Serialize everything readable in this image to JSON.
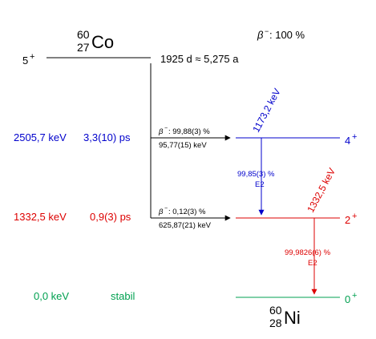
{
  "colors": {
    "black": "#000000",
    "blue": "#0000cc",
    "red": "#dd0000",
    "green": "#00a050"
  },
  "parent": {
    "mass": "60",
    "atomic": "27",
    "symbol": "Co",
    "spin": "5",
    "parity": "+",
    "half_life": "1925 d ≈ 5,275 a",
    "decay_mode": "β",
    "decay_mode_sign": "−",
    "decay_branch": ": 100 %"
  },
  "daughter": {
    "mass": "60",
    "atomic": "28",
    "symbol": "Ni"
  },
  "levels": [
    {
      "id": "level-4plus",
      "energy": "2505,7 keV",
      "half_life": "3,3(10) ps",
      "spin": "4",
      "parity": "+",
      "color": "blue"
    },
    {
      "id": "level-2plus",
      "energy": "1332,5 keV",
      "half_life": "0,9(3) ps",
      "spin": "2",
      "parity": "+",
      "color": "red"
    },
    {
      "id": "level-0plus",
      "energy": "0,0 keV",
      "half_life": "stabil",
      "spin": "0",
      "parity": "+",
      "color": "green"
    }
  ],
  "beta_branches": [
    {
      "id": "beta-to-4plus",
      "label_sym": "β",
      "label_sign": "−",
      "intensity": ": 99,88(3) %",
      "energy": "95,77(15) keV"
    },
    {
      "id": "beta-to-2plus",
      "label_sym": "β",
      "label_sign": "−",
      "intensity": ": 0,12(3) %",
      "energy": "625,87(21) keV"
    }
  ],
  "gamma_transitions": [
    {
      "id": "gamma-1173",
      "energy": "1173,2 keV",
      "intensity": "99,85(3) %",
      "multipolarity": "E2",
      "color": "blue"
    },
    {
      "id": "gamma-1332",
      "energy": "1332,5 keV",
      "intensity": "99,9826(6) %",
      "multipolarity": "E2",
      "color": "red"
    }
  ]
}
